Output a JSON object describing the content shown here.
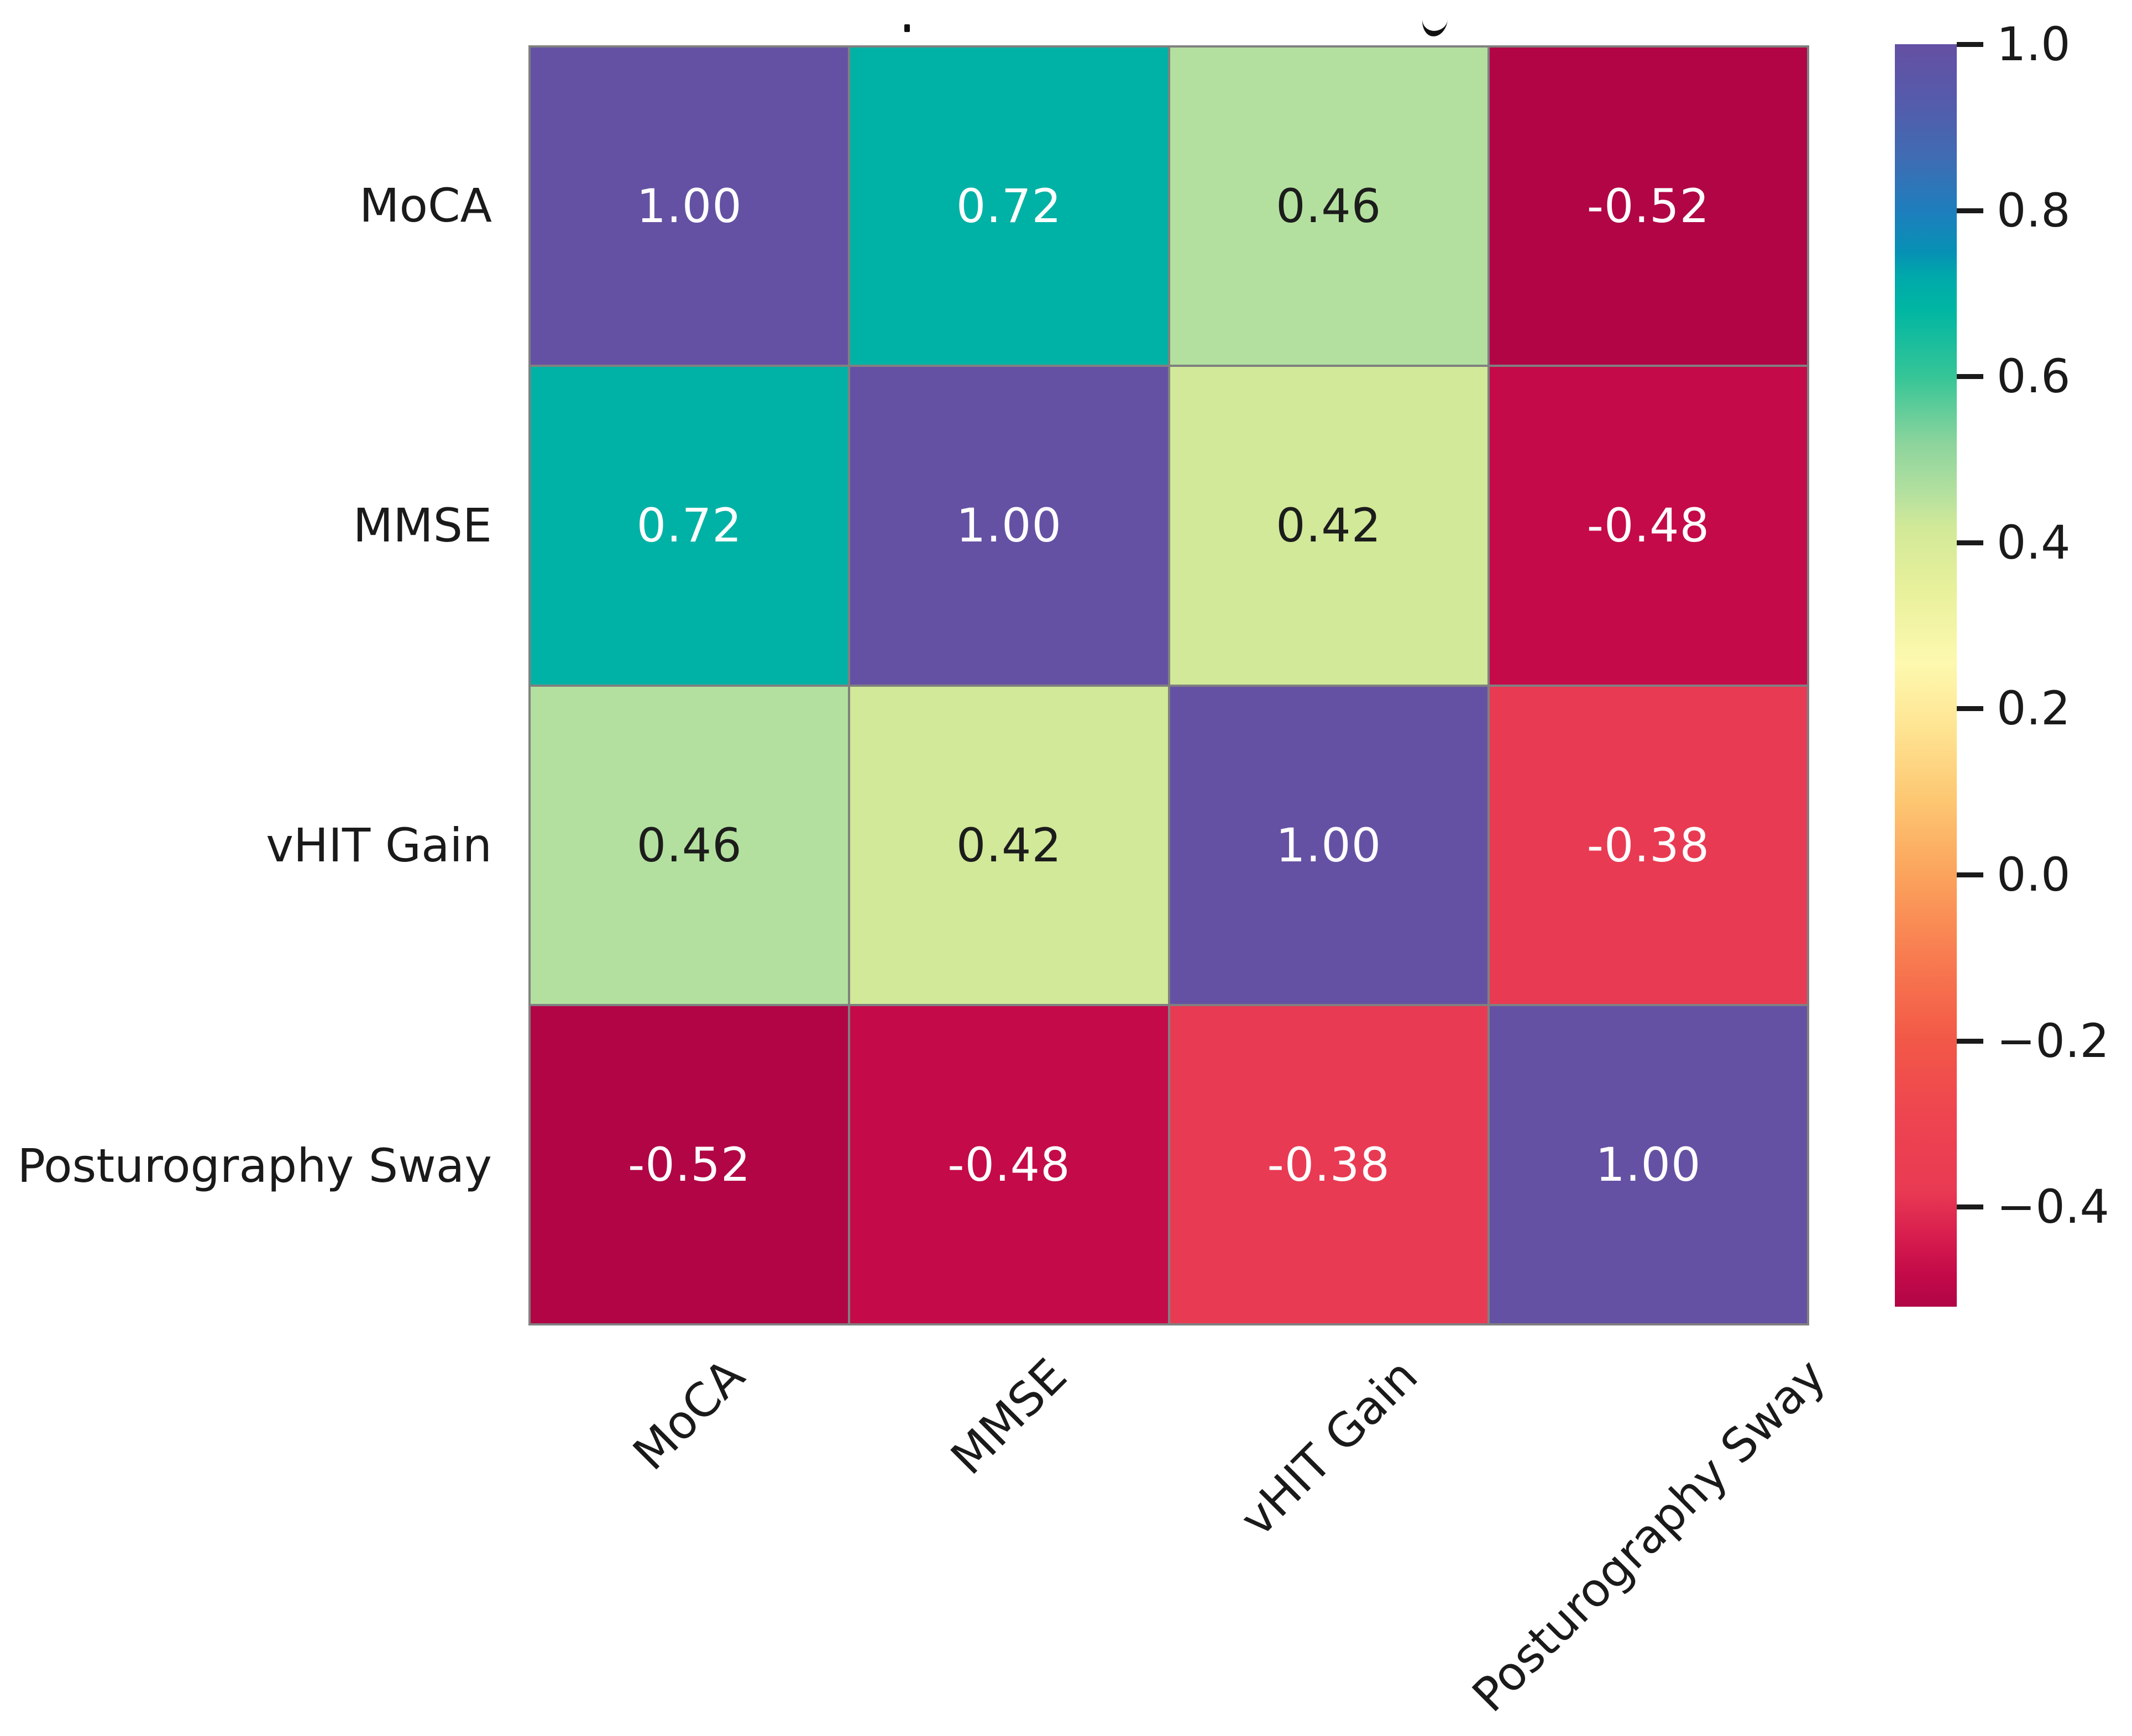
{
  "chart_data": {
    "type": "heatmap",
    "subtype": "correlation-matrix",
    "title_visible": false,
    "variables": [
      "MoCA",
      "MMSE",
      "vHIT Gain",
      "Posturography Sway"
    ],
    "x_tick_labels": [
      "MoCA",
      "MMSE",
      "vHIT Gain",
      "Posturography Sway"
    ],
    "y_tick_labels": [
      "MoCA",
      "MMSE",
      "vHIT Gain",
      "Posturography Sway"
    ],
    "matrix": [
      [
        1.0,
        0.72,
        0.46,
        -0.52
      ],
      [
        0.72,
        1.0,
        0.42,
        -0.48
      ],
      [
        0.46,
        0.42,
        1.0,
        -0.38
      ],
      [
        -0.52,
        -0.48,
        -0.38,
        1.0
      ]
    ],
    "cell_labels": [
      [
        "1.00",
        "0.72",
        "0.46",
        "-0.52"
      ],
      [
        "0.72",
        "1.00",
        "0.42",
        "-0.48"
      ],
      [
        "0.46",
        "0.42",
        "1.00",
        "-0.38"
      ],
      [
        "-0.52",
        "-0.48",
        "-0.38",
        "1.00"
      ]
    ],
    "cell_colors": [
      [
        "#6551a3",
        "#00b2a5",
        "#b3e09f",
        "#b10546"
      ],
      [
        "#00b2a5",
        "#6551a3",
        "#d1e998",
        "#c40a49"
      ],
      [
        "#b3e09f",
        "#d1e998",
        "#6551a3",
        "#e93a53"
      ],
      [
        "#b10546",
        "#c40a49",
        "#e93a53",
        "#6551a3"
      ]
    ],
    "cell_text_colors": [
      [
        "#ffffff",
        "#ffffff",
        "#1c1c1c",
        "#ffffff"
      ],
      [
        "#ffffff",
        "#ffffff",
        "#1c1c1c",
        "#ffffff"
      ],
      [
        "#1c1c1c",
        "#1c1c1c",
        "#ffffff",
        "#ffffff"
      ],
      [
        "#ffffff",
        "#ffffff",
        "#ffffff",
        "#ffffff"
      ]
    ],
    "colorbar": {
      "orientation": "vertical",
      "position": "right",
      "vmin": -0.52,
      "vmax": 1.0,
      "tick_values": [
        1.0,
        0.8,
        0.6,
        0.4,
        0.2,
        0.0,
        -0.2,
        -0.4
      ],
      "tick_labels": [
        "1.0",
        "0.8",
        "0.6",
        "0.4",
        "0.2",
        "0.0",
        "−0.2",
        "−0.4"
      ],
      "gradient_top_to_bottom": [
        "#6550a3",
        "#1e7ebd",
        "#00a9ab",
        "#35c597",
        "#b3e09f",
        "#d1e998",
        "#fdf9ae",
        "#fba35c",
        "#f25847",
        "#e93a53",
        "#b00546"
      ]
    },
    "grid_line_color": "#808080",
    "annotation_format": ".2f",
    "legend_position": "right",
    "grid": "off"
  },
  "colors": {
    "background": "#ffffff",
    "axis_text": "#1a1a1a",
    "cell_border": "#808080",
    "diagonal_purple": "#6551a3",
    "teal": "#00b2a5",
    "light_green": "#b3e09f",
    "yellow_green": "#d1e998",
    "red": "#e93a53",
    "crimson": "#c40a49",
    "dark_crimson": "#b10546"
  }
}
